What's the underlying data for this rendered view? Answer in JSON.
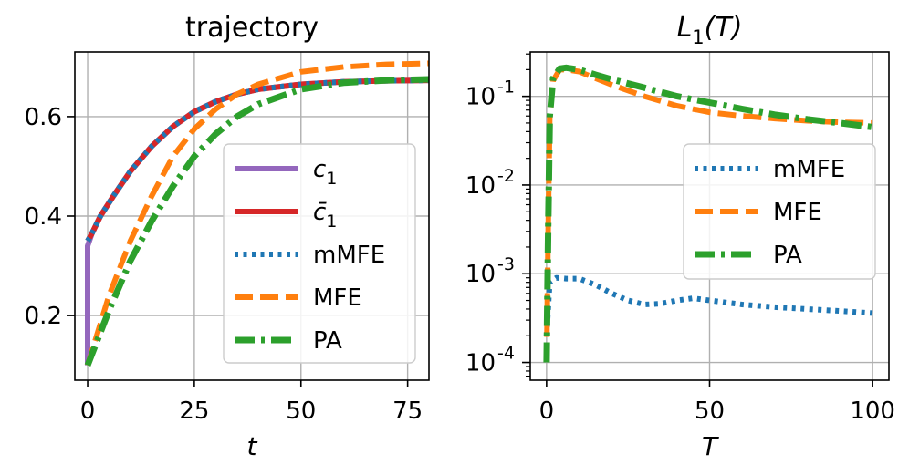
{
  "chart_data": [
    {
      "type": "line",
      "title": "trajectory",
      "xlabel": "t",
      "ylabel": "",
      "xlim": [
        -3,
        80
      ],
      "ylim": [
        0.07,
        0.73
      ],
      "xticks": [
        "0",
        "25",
        "50",
        "75"
      ],
      "yticks": [
        "0.2",
        "0.4",
        "0.6"
      ],
      "xtick_values": [
        0,
        25,
        50,
        75
      ],
      "ytick_values": [
        0.2,
        0.4,
        0.6
      ],
      "legend_position": "center-right",
      "series": [
        {
          "name": "c₁",
          "legend_text": "c",
          "legend_sub": "1",
          "color": "#9467bd",
          "style": "solid",
          "x": [
            0,
            0,
            1,
            3,
            6,
            10,
            15,
            20,
            25,
            30,
            35,
            40,
            50,
            60,
            70,
            80
          ],
          "y": [
            0.1,
            0.34,
            0.365,
            0.4,
            0.44,
            0.49,
            0.54,
            0.58,
            0.61,
            0.63,
            0.645,
            0.655,
            0.665,
            0.67,
            0.672,
            0.673
          ]
        },
        {
          "name": "c̄₁",
          "legend_text": "c̄",
          "legend_sub": "1",
          "color": "#d62728",
          "style": "solid",
          "x": [
            0,
            1,
            3,
            6,
            10,
            15,
            20,
            25,
            30,
            35,
            40,
            50,
            60,
            70,
            80
          ],
          "y": [
            0.35,
            0.365,
            0.4,
            0.44,
            0.49,
            0.54,
            0.58,
            0.61,
            0.63,
            0.645,
            0.655,
            0.665,
            0.67,
            0.672,
            0.673
          ]
        },
        {
          "name": "mMFE",
          "legend_text": "mMFE",
          "color": "#1f77b4",
          "style": "dotted",
          "x": [
            0,
            1,
            3,
            6,
            10,
            15,
            20,
            25,
            30,
            35,
            40,
            50,
            60,
            70,
            80
          ],
          "y": [
            0.35,
            0.365,
            0.4,
            0.44,
            0.49,
            0.54,
            0.58,
            0.61,
            0.63,
            0.645,
            0.655,
            0.665,
            0.67,
            0.672,
            0.673
          ]
        },
        {
          "name": "MFE",
          "legend_text": "MFE",
          "color": "#ff7f0e",
          "style": "dashed",
          "x": [
            0,
            5,
            10,
            15,
            20,
            25,
            30,
            35,
            40,
            50,
            60,
            70,
            80
          ],
          "y": [
            0.1,
            0.24,
            0.35,
            0.44,
            0.52,
            0.575,
            0.615,
            0.645,
            0.665,
            0.69,
            0.7,
            0.705,
            0.707
          ]
        },
        {
          "name": "PA",
          "legend_text": "PA",
          "color": "#2ca02c",
          "style": "dashdot",
          "x": [
            0,
            5,
            10,
            15,
            20,
            25,
            30,
            35,
            40,
            50,
            60,
            70,
            80
          ],
          "y": [
            0.1,
            0.21,
            0.31,
            0.39,
            0.46,
            0.52,
            0.565,
            0.6,
            0.625,
            0.655,
            0.668,
            0.673,
            0.675
          ]
        }
      ]
    },
    {
      "type": "line",
      "title": "L₁(T)",
      "title_main": "L",
      "title_sub": "1",
      "title_arg": "(T)",
      "xlabel": "T",
      "ylabel": "",
      "yscale": "log",
      "xlim": [
        -5,
        105
      ],
      "ylim_log10": [
        -4.2,
        -0.5
      ],
      "xticks": [
        "0",
        "50",
        "100"
      ],
      "xtick_values": [
        0,
        50,
        100
      ],
      "yticks": [
        "10",
        "10",
        "10",
        "10"
      ],
      "ytick_exponents": [
        "-1",
        "-2",
        "-3",
        "-4"
      ],
      "ytick_log10": [
        -1,
        -2,
        -3,
        -4
      ],
      "legend_position": "upper-right",
      "series": [
        {
          "name": "mMFE",
          "legend_text": "mMFE",
          "color": "#1f77b4",
          "style": "dotted",
          "x": [
            0,
            1,
            3,
            6,
            10,
            15,
            20,
            25,
            30,
            35,
            40,
            45,
            50,
            60,
            70,
            80,
            90,
            100
          ],
          "y": [
            0.0002,
            0.0008,
            0.0009,
            0.00088,
            0.00088,
            0.00075,
            0.0006,
            0.0005,
            0.00045,
            0.00046,
            0.0005,
            0.00053,
            0.0005,
            0.00045,
            0.00042,
            0.0004,
            0.00038,
            0.00036
          ]
        },
        {
          "name": "MFE",
          "legend_text": "MFE",
          "color": "#ff7f0e",
          "style": "dashed",
          "x": [
            0,
            0.5,
            1,
            2,
            4,
            6,
            10,
            15,
            20,
            30,
            40,
            50,
            60,
            70,
            80,
            90,
            100
          ],
          "y": [
            0.0001,
            0.003,
            0.06,
            0.15,
            0.2,
            0.2,
            0.19,
            0.16,
            0.135,
            0.1,
            0.078,
            0.066,
            0.06,
            0.056,
            0.053,
            0.051,
            0.05
          ]
        },
        {
          "name": "PA",
          "legend_text": "PA",
          "color": "#2ca02c",
          "style": "dashdot",
          "x": [
            0,
            0.5,
            1,
            2,
            4,
            6,
            10,
            15,
            20,
            30,
            40,
            50,
            60,
            70,
            80,
            90,
            100
          ],
          "y": [
            0.0001,
            0.003,
            0.06,
            0.16,
            0.205,
            0.21,
            0.2,
            0.175,
            0.155,
            0.125,
            0.1,
            0.085,
            0.072,
            0.062,
            0.055,
            0.05,
            0.045
          ]
        }
      ]
    }
  ]
}
